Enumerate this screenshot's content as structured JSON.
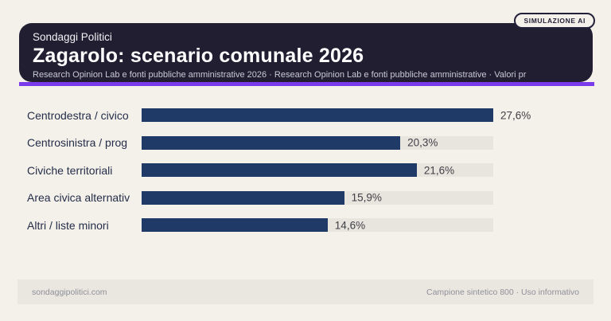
{
  "badge": "SIMULAZIONE AI",
  "header": {
    "kicker": "Sondaggi Politici",
    "title": "Zagarolo: scenario comunale 2026",
    "subtitle": "Research Opinion Lab e fonti pubbliche amministrative 2026 · Research Opinion Lab e fonti pubbliche amministrative · Valori pr"
  },
  "chart_data": {
    "type": "bar",
    "orientation": "horizontal",
    "title": "Zagarolo: scenario comunale 2026",
    "categories": [
      "Centrodestra / civico",
      "Centrosinistra / prog",
      "Civiche territoriali",
      "Area civica alternativ",
      "Altri / liste minori"
    ],
    "values": [
      27.6,
      20.3,
      21.6,
      15.9,
      14.6
    ],
    "value_labels": [
      "27,6%",
      "20,3%",
      "21,6%",
      "15,9%",
      "14,6%"
    ],
    "xlim": [
      0,
      27.6
    ],
    "unit": "%",
    "grid": false,
    "legend": false,
    "bar_color": "#1f3a66",
    "track_color": "#e8e5df"
  },
  "footer": {
    "left": "sondaggipolitici.com",
    "right": "Campione sintetico 800 · Uso informativo"
  },
  "colors": {
    "page_bg": "#f4f0ea",
    "header_bg": "#211e32",
    "accent": "#7c3aed",
    "bar": "#1f3a66",
    "track": "#e8e5df",
    "category_text": "#242e49",
    "value_text": "#3f3f46",
    "footer_bg": "#eae7e1",
    "footer_text": "#8f8f98",
    "badge_ink": "#23203a"
  }
}
